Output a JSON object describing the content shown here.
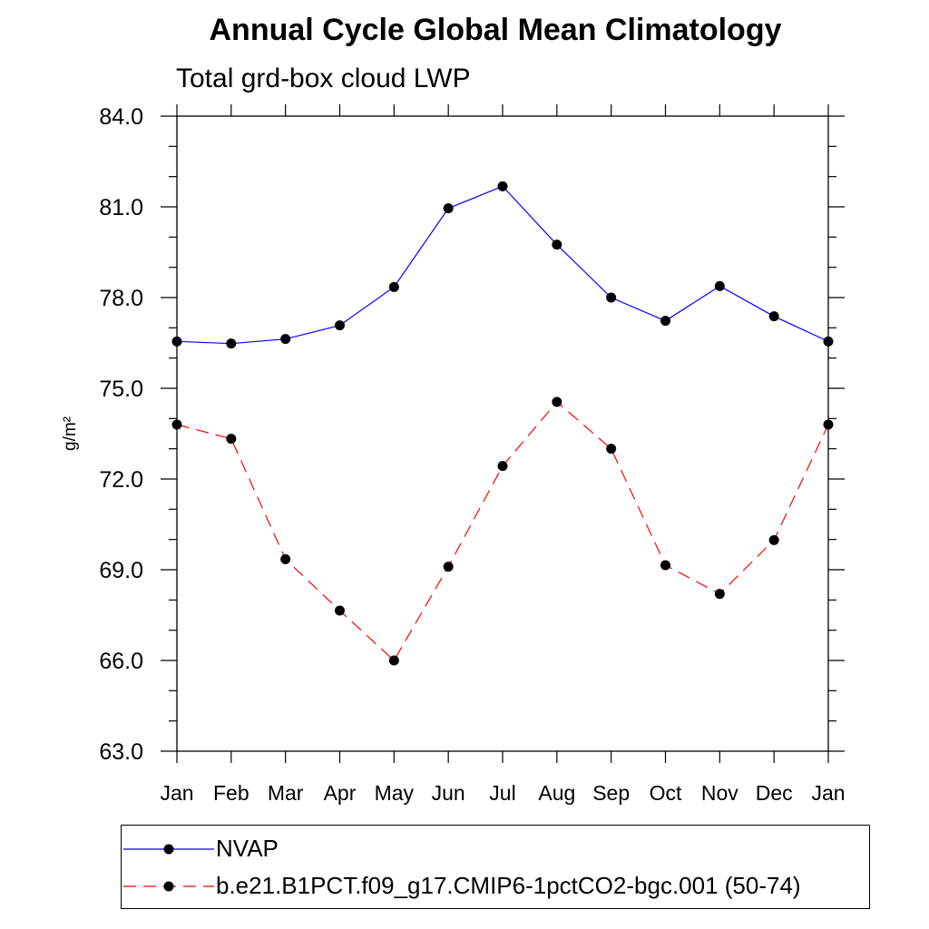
{
  "chart_data": {
    "type": "line",
    "title": "Annual Cycle Global Mean Climatology",
    "subtitle": "Total grd-box cloud LWP",
    "ylabel": "g/m²",
    "xlabel": "",
    "categories": [
      "Jan",
      "Feb",
      "Mar",
      "Apr",
      "May",
      "Jun",
      "Jul",
      "Aug",
      "Sep",
      "Oct",
      "Nov",
      "Dec",
      "Jan"
    ],
    "ylim": [
      63.0,
      84.0
    ],
    "yticks": [
      "63.0",
      "66.0",
      "69.0",
      "72.0",
      "75.0",
      "78.0",
      "81.0",
      "84.0"
    ],
    "grid": false,
    "legend_position": "bottom",
    "series": [
      {
        "name": "NVAP",
        "color": "#0000ff",
        "dashed": false,
        "values": [
          76.55,
          76.48,
          76.63,
          77.08,
          78.35,
          80.95,
          81.68,
          79.75,
          78.0,
          77.23,
          78.38,
          77.38,
          76.55
        ]
      },
      {
        "name": "b.e21.B1PCT.f09_g17.CMIP6-1pctCO2-bgc.001 (50-74)",
        "color": "#ff0000",
        "dashed": true,
        "values": [
          73.8,
          73.33,
          69.35,
          67.65,
          66.0,
          69.1,
          72.43,
          74.55,
          73.0,
          69.15,
          68.2,
          69.98,
          73.8
        ]
      }
    ]
  }
}
